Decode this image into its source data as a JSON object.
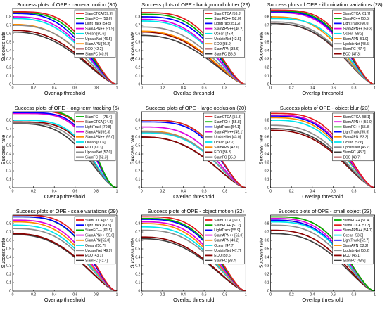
{
  "chart_data": [
    {
      "type": "line",
      "title": "Success plots of OPE - camera motion (30)",
      "xlabel": "Overlap threshold",
      "ylabel": "Success rate",
      "xlim": [
        0,
        1
      ],
      "ylim": [
        0,
        0.9
      ],
      "xticks": [
        "0",
        "0.2",
        "0.4",
        "0.6",
        "0.8",
        "1"
      ],
      "yticks": [
        "0",
        "0.1",
        "0.2",
        "0.3",
        "0.4",
        "0.5",
        "0.6",
        "0.7",
        "0.8"
      ],
      "grid": false,
      "legend_position": "top-right",
      "series": [
        {
          "name": "SiamCTCA [59.9]",
          "color": "#e41a1c",
          "start": 0.86,
          "shape": 1.2
        },
        {
          "name": "SiamFC++ [58.6]",
          "color": "#00b000",
          "start": 0.85,
          "shape": 1.05
        },
        {
          "name": "LightTrack [54.5]",
          "color": "#0000ff",
          "start": 0.84,
          "shape": 0.9
        },
        {
          "name": "SiamAPN++ [51.9]",
          "color": "#e000e0",
          "start": 0.8,
          "shape": 0.85
        },
        {
          "name": "Ocean [50.6]",
          "color": "#00e5ee",
          "start": 0.78,
          "shape": 0.8
        },
        {
          "name": "UpdateNet [46.5]",
          "color": "#8c8c8c",
          "start": 0.7,
          "shape": 0.75
        },
        {
          "name": "SiamAPN [46.2]",
          "color": "#ff8c00",
          "start": 0.71,
          "shape": 0.7
        },
        {
          "name": "ECO [42.2]",
          "color": "#8b0000",
          "start": 0.64,
          "shape": 0.65
        },
        {
          "name": "SiamFC [40.9]",
          "color": "#404040",
          "start": 0.62,
          "shape": 0.6
        }
      ]
    },
    {
      "type": "line",
      "title": "Success plots of OPE - background clutter (29)",
      "xlabel": "Overlap threshold",
      "ylabel": "Success rate",
      "xlim": [
        0,
        1
      ],
      "ylim": [
        0,
        0.9
      ],
      "xticks": [
        "0",
        "0.2",
        "0.4",
        "0.6",
        "0.8",
        "1"
      ],
      "yticks": [
        "0",
        "0.1",
        "0.2",
        "0.3",
        "0.4",
        "0.5",
        "0.6",
        "0.7",
        "0.8"
      ],
      "grid": false,
      "legend_position": "top-right",
      "series": [
        {
          "name": "SiamCTCA [53.3]",
          "color": "#e41a1c",
          "start": 0.85,
          "shape": 1.1
        },
        {
          "name": "SiamFC++ [52.0]",
          "color": "#00b000",
          "start": 0.83,
          "shape": 1.0
        },
        {
          "name": "LightTrack [51.2]",
          "color": "#0000ff",
          "start": 0.8,
          "shape": 0.95
        },
        {
          "name": "SiamAPN++ [46.2]",
          "color": "#e000e0",
          "start": 0.77,
          "shape": 0.8
        },
        {
          "name": "Ocean [45.4]",
          "color": "#00e5ee",
          "start": 0.75,
          "shape": 0.78
        },
        {
          "name": "UpdateNet [42.5]",
          "color": "#8c8c8c",
          "start": 0.68,
          "shape": 0.7
        },
        {
          "name": "ECO [38.9]",
          "color": "#ff8c00",
          "start": 0.63,
          "shape": 0.65
        },
        {
          "name": "SiamAPN [38.6]",
          "color": "#8b0000",
          "start": 0.62,
          "shape": 0.62
        },
        {
          "name": "SiamFC [36.6]",
          "color": "#404040",
          "start": 0.58,
          "shape": 0.6
        }
      ]
    },
    {
      "type": "line",
      "title": "Success plots of OPE - illumination variations (28)",
      "xlabel": "Overlap threshold",
      "ylabel": "Success rate",
      "xlim": [
        0,
        1
      ],
      "ylim": [
        0,
        0.9
      ],
      "xticks": [
        "0",
        "0.2",
        "0.4",
        "0.6",
        "0.8",
        "1"
      ],
      "yticks": [
        "0",
        "0.1",
        "0.2",
        "0.3",
        "0.4",
        "0.5",
        "0.6",
        "0.7",
        "0.8"
      ],
      "grid": false,
      "legend_position": "top-right",
      "series": [
        {
          "name": "SiamCTCA [61.7]",
          "color": "#e41a1c",
          "start": 0.88,
          "shape": 1.3
        },
        {
          "name": "SiamFC++ [60.5]",
          "color": "#00b000",
          "start": 0.87,
          "shape": 1.2
        },
        {
          "name": "LightTrack [60.0]",
          "color": "#0000ff",
          "start": 0.86,
          "shape": 1.15
        },
        {
          "name": "SiamAPN++ [59.3]",
          "color": "#e000e0",
          "start": 0.85,
          "shape": 1.1
        },
        {
          "name": "Ocean [58.2]",
          "color": "#00e5ee",
          "start": 0.78,
          "shape": 1.05
        },
        {
          "name": "SiamAPN [51.9]",
          "color": "#ff8c00",
          "start": 0.8,
          "shape": 0.85
        },
        {
          "name": "UpdateNet [48.5]",
          "color": "#8c8c8c",
          "start": 0.74,
          "shape": 0.8
        },
        {
          "name": "SiamFC [47.4]",
          "color": "#404040",
          "start": 0.72,
          "shape": 0.78
        },
        {
          "name": "ECO [47.3]",
          "color": "#8b0000",
          "start": 0.72,
          "shape": 0.76
        }
      ]
    },
    {
      "type": "line",
      "title": "Success plots of OPE - long-term tracking (6)",
      "xlabel": "Overlap threshold",
      "ylabel": "Success rate",
      "xlim": [
        0,
        1
      ],
      "ylim": [
        0,
        0.9
      ],
      "xticks": [
        "0",
        "0.2",
        "0.4",
        "0.6",
        "0.8",
        "1"
      ],
      "yticks": [
        "0",
        "0.1",
        "0.2",
        "0.3",
        "0.4",
        "0.5",
        "0.6",
        "0.7",
        "0.8"
      ],
      "grid": false,
      "legend_position": "top-right",
      "series": [
        {
          "name": "SiamFC++ [75.4]",
          "color": "#00b000",
          "start": 0.92,
          "shape": 2.0
        },
        {
          "name": "SiamCTCA [74.8]",
          "color": "#e41a1c",
          "start": 0.91,
          "shape": 1.95
        },
        {
          "name": "LightTrack [70.8]",
          "color": "#0000ff",
          "start": 0.89,
          "shape": 1.8
        },
        {
          "name": "SiamAPN [69.3]",
          "color": "#e000e0",
          "start": 0.88,
          "shape": 1.7
        },
        {
          "name": "SiamAPN++ [69.0]",
          "color": "#ff8c00",
          "start": 0.88,
          "shape": 1.7
        },
        {
          "name": "Ocean [61.6]",
          "color": "#00e5ee",
          "start": 0.8,
          "shape": 1.4
        },
        {
          "name": "ECO [61.3]",
          "color": "#8b0000",
          "start": 0.78,
          "shape": 1.4
        },
        {
          "name": "UpdateNet [57.0]",
          "color": "#8c8c8c",
          "start": 0.77,
          "shape": 1.2
        },
        {
          "name": "SiamFC [52.3]",
          "color": "#404040",
          "start": 0.76,
          "shape": 1.0
        }
      ]
    },
    {
      "type": "line",
      "title": "Success plots of OPE - large occlusion (20)",
      "xlabel": "Overlap threshold",
      "ylabel": "Success rate",
      "xlim": [
        0,
        1
      ],
      "ylim": [
        0,
        0.9
      ],
      "xticks": [
        "0",
        "0.2",
        "0.4",
        "0.6",
        "0.8",
        "1"
      ],
      "yticks": [
        "0",
        "0.1",
        "0.2",
        "0.3",
        "0.4",
        "0.5",
        "0.6",
        "0.7",
        "0.8"
      ],
      "grid": false,
      "legend_position": "top-right",
      "series": [
        {
          "name": "SiamCTCA [55.8]",
          "color": "#e41a1c",
          "start": 0.8,
          "shape": 1.3
        },
        {
          "name": "SiamFC++ [55.8]",
          "color": "#00b000",
          "start": 0.8,
          "shape": 1.3
        },
        {
          "name": "LightTrack [54.1]",
          "color": "#0000ff",
          "start": 0.78,
          "shape": 1.25
        },
        {
          "name": "SiamAPN++ [45.1]",
          "color": "#e000e0",
          "start": 0.72,
          "shape": 0.95
        },
        {
          "name": "UpdateNet [43.0]",
          "color": "#8c8c8c",
          "start": 0.66,
          "shape": 0.9
        },
        {
          "name": "Ocean [42.2]",
          "color": "#00e5ee",
          "start": 0.65,
          "shape": 0.88
        },
        {
          "name": "SiamAPN [42.0]",
          "color": "#ff8c00",
          "start": 0.67,
          "shape": 0.86
        },
        {
          "name": "ECO [36.3]",
          "color": "#8b0000",
          "start": 0.6,
          "shape": 0.7
        },
        {
          "name": "SiamFC [35.9]",
          "color": "#404040",
          "start": 0.6,
          "shape": 0.68
        }
      ]
    },
    {
      "type": "line",
      "title": "Success plots of OPE - object blur (23)",
      "xlabel": "Overlap threshold",
      "ylabel": "Success rate",
      "xlim": [
        0,
        1
      ],
      "ylim": [
        0,
        0.9
      ],
      "xticks": [
        "0",
        "0.2",
        "0.4",
        "0.6",
        "0.8",
        "1"
      ],
      "yticks": [
        "0",
        "0.1",
        "0.2",
        "0.3",
        "0.4",
        "0.5",
        "0.6",
        "0.7",
        "0.8"
      ],
      "grid": false,
      "legend_position": "top-right",
      "series": [
        {
          "name": "SiamCTCA [58.1]",
          "color": "#e41a1c",
          "start": 0.88,
          "shape": 1.15
        },
        {
          "name": "SiamAPN++ [56.0]",
          "color": "#e000e0",
          "start": 0.86,
          "shape": 1.05
        },
        {
          "name": "SiamFC++ [55.8]",
          "color": "#00b000",
          "start": 0.86,
          "shape": 1.05
        },
        {
          "name": "LightTrack [55.5]",
          "color": "#0000ff",
          "start": 0.85,
          "shape": 1.0
        },
        {
          "name": "SiamAPN [53.3]",
          "color": "#ff8c00",
          "start": 0.83,
          "shape": 0.95
        },
        {
          "name": "Ocean [52.6]",
          "color": "#00e5ee",
          "start": 0.8,
          "shape": 0.92
        },
        {
          "name": "UpdateNet [46.7]",
          "color": "#8c8c8c",
          "start": 0.74,
          "shape": 0.78
        },
        {
          "name": "SiamFC [45.3]",
          "color": "#404040",
          "start": 0.7,
          "shape": 0.75
        },
        {
          "name": "ECO [43.7]",
          "color": "#8b0000",
          "start": 0.68,
          "shape": 0.72
        }
      ]
    },
    {
      "type": "line",
      "title": "Success plots of OPE - scale variations (29)",
      "xlabel": "Overlap threshold",
      "ylabel": "Success rate",
      "xlim": [
        0,
        1
      ],
      "ylim": [
        0,
        0.9
      ],
      "xticks": [
        "0",
        "0.2",
        "0.4",
        "0.6",
        "0.8",
        "1"
      ],
      "yticks": [
        "0",
        "0.1",
        "0.2",
        "0.3",
        "0.4",
        "0.5",
        "0.6",
        "0.7",
        "0.8"
      ],
      "grid": false,
      "legend_position": "top-right",
      "series": [
        {
          "name": "SiamCTCA [63.7]",
          "color": "#e41a1c",
          "start": 0.9,
          "shape": 1.35
        },
        {
          "name": "LightTrack [61.9]",
          "color": "#0000ff",
          "start": 0.88,
          "shape": 1.25
        },
        {
          "name": "SiamFC++ [61.5]",
          "color": "#00b000",
          "start": 0.88,
          "shape": 1.22
        },
        {
          "name": "SiamAPN++ [55.6]",
          "color": "#e000e0",
          "start": 0.84,
          "shape": 1.0
        },
        {
          "name": "SiamAPN [52.8]",
          "color": "#ff8c00",
          "start": 0.82,
          "shape": 0.9
        },
        {
          "name": "Ocean [50.7]",
          "color": "#00e5ee",
          "start": 0.78,
          "shape": 0.86
        },
        {
          "name": "UpdateNet [49.9]",
          "color": "#8c8c8c",
          "start": 0.74,
          "shape": 0.84
        },
        {
          "name": "ECO [43.1]",
          "color": "#8b0000",
          "start": 0.68,
          "shape": 0.7
        },
        {
          "name": "SiamFC [42.4]",
          "color": "#404040",
          "start": 0.67,
          "shape": 0.68
        }
      ]
    },
    {
      "type": "line",
      "title": "Success plots of OPE - object motion (32)",
      "xlabel": "Overlap threshold",
      "ylabel": "Success rate",
      "xlim": [
        0,
        1
      ],
      "ylim": [
        0,
        0.9
      ],
      "xticks": [
        "0",
        "0.2",
        "0.4",
        "0.6",
        "0.8",
        "1"
      ],
      "yticks": [
        "0",
        "0.1",
        "0.2",
        "0.3",
        "0.4",
        "0.5",
        "0.6",
        "0.7",
        "0.8"
      ],
      "grid": false,
      "legend_position": "top-right",
      "series": [
        {
          "name": "SiamCTCA [60.1]",
          "color": "#e41a1c",
          "start": 0.88,
          "shape": 1.2
        },
        {
          "name": "SiamFC++ [57.2]",
          "color": "#00b000",
          "start": 0.86,
          "shape": 1.1
        },
        {
          "name": "LightTrack [55.9]",
          "color": "#0000ff",
          "start": 0.85,
          "shape": 1.05
        },
        {
          "name": "SiamAPN++ [52.0]",
          "color": "#e000e0",
          "start": 0.82,
          "shape": 0.92
        },
        {
          "name": "SiamAPN [49.2]",
          "color": "#ff8c00",
          "start": 0.8,
          "shape": 0.84
        },
        {
          "name": "Ocean [47.7]",
          "color": "#00e5ee",
          "start": 0.76,
          "shape": 0.82
        },
        {
          "name": "UpdateNet [47.7]",
          "color": "#8c8c8c",
          "start": 0.72,
          "shape": 0.82
        },
        {
          "name": "ECO [39.6]",
          "color": "#8b0000",
          "start": 0.64,
          "shape": 0.66
        },
        {
          "name": "SiamFC [38.4]",
          "color": "#404040",
          "start": 0.62,
          "shape": 0.64
        }
      ]
    },
    {
      "type": "line",
      "title": "Success plots of OPE - small object (23)",
      "xlabel": "Overlap threshold",
      "ylabel": "Success rate",
      "xlim": [
        0,
        1
      ],
      "ylim": [
        0,
        0.9
      ],
      "xticks": [
        "0",
        "0.2",
        "0.4",
        "0.6",
        "0.8",
        "1"
      ],
      "yticks": [
        "0",
        "0.1",
        "0.2",
        "0.3",
        "0.4",
        "0.5",
        "0.6",
        "0.7",
        "0.8"
      ],
      "grid": false,
      "legend_position": "top-right",
      "series": [
        {
          "name": "SiamFC++ [57.4]",
          "color": "#00b000",
          "start": 0.88,
          "shape": 1.1
        },
        {
          "name": "SiamCTCA [57.3]",
          "color": "#e41a1c",
          "start": 0.88,
          "shape": 1.1
        },
        {
          "name": "SiamAPN++ [54.7]",
          "color": "#e000e0",
          "start": 0.86,
          "shape": 1.0
        },
        {
          "name": "Ocean [53.3]",
          "color": "#00e5ee",
          "start": 0.82,
          "shape": 0.96
        },
        {
          "name": "LightTrack [52.7]",
          "color": "#0000ff",
          "start": 0.84,
          "shape": 0.94
        },
        {
          "name": "SiamAPN [52.2]",
          "color": "#ff8c00",
          "start": 0.84,
          "shape": 0.92
        },
        {
          "name": "UpdateNet [50.2]",
          "color": "#8c8c8c",
          "start": 0.78,
          "shape": 0.88
        },
        {
          "name": "ECO [46.1]",
          "color": "#8b0000",
          "start": 0.72,
          "shape": 0.8
        },
        {
          "name": "SiamFC [43.9]",
          "color": "#404040",
          "start": 0.68,
          "shape": 0.75
        }
      ]
    }
  ]
}
